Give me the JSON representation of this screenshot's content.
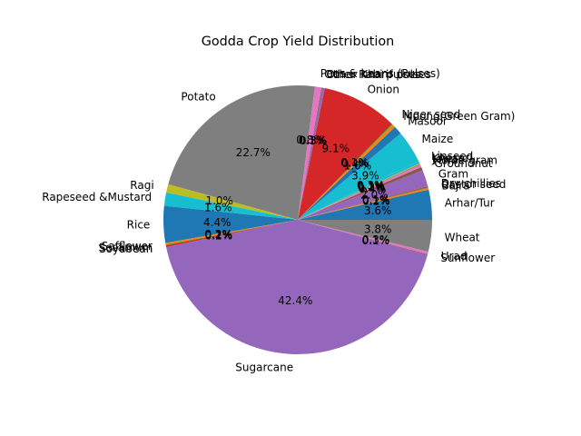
{
  "chart_data": {
    "type": "pie",
    "title": "Godda Crop Yield Distribution",
    "start_angle_deg": 0,
    "direction": "counterclockwise",
    "slices": [
      {
        "label": "Arhar/Tur",
        "value": 3.6,
        "pct_label": "3.6%",
        "color": "#1f77b4"
      },
      {
        "label": "Bajra",
        "value": 0.2,
        "pct_label": "0.2%",
        "color": "#ff7f0e"
      },
      {
        "label": "Castor seed",
        "value": 0.1,
        "pct_label": "0.1%",
        "color": "#2ca02c"
      },
      {
        "label": "Dry chillies",
        "value": 0.1,
        "pct_label": "0.1%",
        "color": "#d62728"
      },
      {
        "label": "Gram",
        "value": 2.0,
        "pct_label": "2.0%",
        "color": "#9467bd"
      },
      {
        "label": "Groundnut",
        "value": 0.4,
        "pct_label": "0.4%",
        "color": "#8c564b"
      },
      {
        "label": "Horse-gram",
        "value": 0.3,
        "pct_label": "0.3%",
        "color": "#e377c2"
      },
      {
        "label": "Jowar",
        "value": 0.1,
        "pct_label": "0.1%",
        "color": "#7f7f7f"
      },
      {
        "label": "Khesari",
        "value": 0.1,
        "pct_label": "0.1%",
        "color": "#bcbd22"
      },
      {
        "label": "Linseed",
        "value": 0.3,
        "pct_label": "0.3%",
        "color": "#17becf"
      },
      {
        "label": "Maize",
        "value": 3.9,
        "pct_label": "3.9%",
        "color": "#17becf"
      },
      {
        "label": "Masoor",
        "value": 1.0,
        "pct_label": "1.0%",
        "color": "#1f77b4"
      },
      {
        "label": "Moong(Green Gram)",
        "value": 0.4,
        "pct_label": "0.4%",
        "color": "#ff7f0e"
      },
      {
        "label": "Niger seed",
        "value": 0.1,
        "pct_label": "0.1%",
        "color": "#2ca02c"
      },
      {
        "label": "Onion",
        "value": 9.1,
        "pct_label": "9.1%",
        "color": "#d62728"
      },
      {
        "label": "Other Kharif pulses",
        "value": 0.3,
        "pct_label": "0.3%",
        "color": "#9467bd"
      },
      {
        "label": "Other Rabi pulses",
        "value": 0.1,
        "pct_label": "0.1%",
        "color": "#8c564b"
      },
      {
        "label": "Peas & beans (Pulses)",
        "value": 0.8,
        "pct_label": "0.8%",
        "color": "#e377c2"
      },
      {
        "label": "Potato",
        "value": 22.7,
        "pct_label": "22.7%",
        "color": "#7f7f7f"
      },
      {
        "label": "Ragi",
        "value": 1.0,
        "pct_label": "1.0%",
        "color": "#bcbd22"
      },
      {
        "label": "Rapeseed &Mustard",
        "value": 1.6,
        "pct_label": "1.6%",
        "color": "#17becf"
      },
      {
        "label": "Rice",
        "value": 4.4,
        "pct_label": "4.4%",
        "color": "#1f77b4"
      },
      {
        "label": "Safflower",
        "value": 0.2,
        "pct_label": "0.2%",
        "color": "#ff7f0e"
      },
      {
        "label": "Sesamum",
        "value": 0.1,
        "pct_label": "0.1%",
        "color": "#2ca02c"
      },
      {
        "label": "Soyabean",
        "value": 0.2,
        "pct_label": "0.2%",
        "color": "#d62728"
      },
      {
        "label": "Sugarcane",
        "value": 42.4,
        "pct_label": "42.4%",
        "color": "#9467bd"
      },
      {
        "label": "Sunflower",
        "value": 0.1,
        "pct_label": "0.1%",
        "color": "#8c564b"
      },
      {
        "label": "Urad",
        "value": 0.3,
        "pct_label": "0.3%",
        "color": "#e377c2"
      },
      {
        "label": "Wheat",
        "value": 3.8,
        "pct_label": "3.8%",
        "color": "#7f7f7f"
      }
    ]
  }
}
